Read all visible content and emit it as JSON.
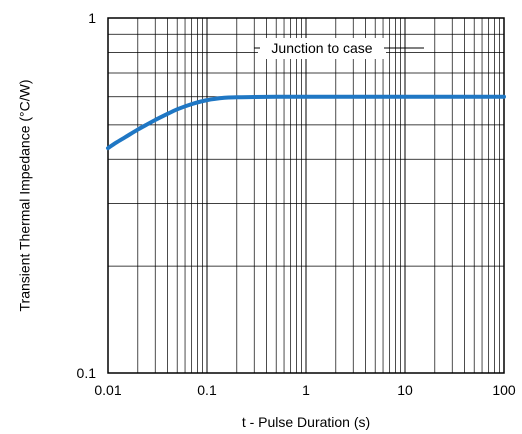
{
  "chart_data": {
    "type": "line",
    "title": "",
    "xlabel": "t - Pulse Duration (s)",
    "ylabel": "Transient Thermal Impedance (°C/W)",
    "xscale": "log",
    "yscale": "log",
    "xlim": [
      0.01,
      100
    ],
    "ylim": [
      0.1,
      1
    ],
    "grid": true,
    "x_ticks": [
      "0.01",
      "0.1",
      "1",
      "10",
      "100"
    ],
    "y_ticks": [
      "0.1",
      "1"
    ],
    "annotation": "Junction to case",
    "series": [
      {
        "name": "Junction to case",
        "color": "#1f77c4",
        "x": [
          0.01,
          0.012,
          0.015,
          0.02,
          0.025,
          0.03,
          0.04,
          0.05,
          0.07,
          0.1,
          0.15,
          0.2,
          0.3,
          0.5,
          1,
          2,
          5,
          10,
          20,
          50,
          100
        ],
        "y": [
          0.43,
          0.445,
          0.462,
          0.485,
          0.502,
          0.516,
          0.537,
          0.553,
          0.572,
          0.587,
          0.596,
          0.598,
          0.599,
          0.6,
          0.6,
          0.6,
          0.6,
          0.6,
          0.6,
          0.6,
          0.6
        ]
      }
    ]
  }
}
